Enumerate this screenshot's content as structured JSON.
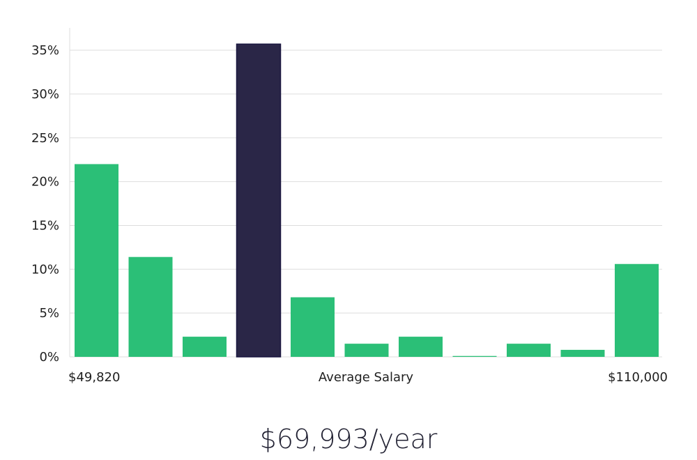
{
  "chart_data": {
    "type": "bar",
    "categories": [
      "1",
      "2",
      "3",
      "4",
      "5",
      "6",
      "7",
      "8",
      "9",
      "10",
      "11"
    ],
    "values": [
      22.0,
      11.4,
      2.3,
      35.7,
      6.8,
      1.5,
      2.3,
      0.1,
      1.5,
      0.8,
      10.6
    ],
    "highlight_index": 3,
    "y_ticks": [
      "0%",
      "5%",
      "10%",
      "15%",
      "20%",
      "25%",
      "30%",
      "35%"
    ],
    "ylim": [
      0,
      37.5
    ],
    "x_left_label": "$49,820",
    "x_center_label": "Average Salary",
    "x_right_label": "$110,000",
    "grid": true,
    "colors": {
      "bar": "#2bbf77",
      "highlight": "#2a2647",
      "grid": "#dddddd"
    }
  },
  "summary": {
    "average_salary": "$69,993/year"
  }
}
